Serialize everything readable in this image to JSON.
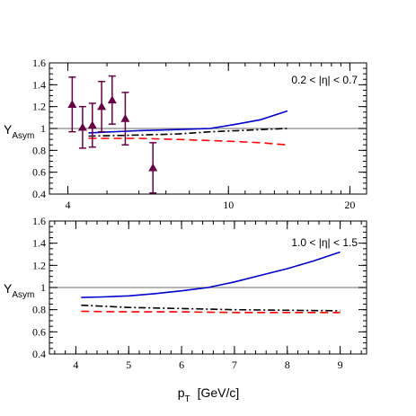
{
  "chart_data": [
    {
      "type": "line",
      "x_scale": "log",
      "xlim": [
        3.6,
        22
      ],
      "ylim": [
        0.4,
        1.6
      ],
      "x_ticks": [
        4,
        10,
        20
      ],
      "x_tick_labels": [
        "4",
        "10",
        "20"
      ],
      "y_ticks": [
        0.4,
        0.6,
        0.8,
        1.0,
        1.2,
        1.4,
        1.6
      ],
      "y_tick_labels": [
        "0.4",
        "0.6",
        "0.8",
        "1",
        "1.2",
        "1.4",
        "1.6"
      ],
      "ylabel": "Y",
      "ylabel_sub": "Asym",
      "annotation": "0.2 < |η| < 0.7",
      "reference_line": 1.0,
      "series": [
        {
          "style": "solid",
          "color": "#0000cc",
          "x": [
            4.5,
            6,
            7.5,
            9,
            10.5,
            12,
            14
          ],
          "y": [
            0.96,
            0.98,
            0.99,
            1.0,
            1.04,
            1.08,
            1.16
          ]
        },
        {
          "style": "dashdot",
          "color": "#000000",
          "x": [
            4.5,
            6,
            7.5,
            9,
            10.5,
            12,
            14
          ],
          "y": [
            0.93,
            0.94,
            0.95,
            0.97,
            0.98,
            0.99,
            1.0
          ]
        },
        {
          "style": "dashed",
          "color": "#ff0000",
          "x": [
            4.5,
            6,
            7.5,
            9,
            10.5,
            12,
            14
          ],
          "y": [
            0.91,
            0.91,
            0.9,
            0.89,
            0.88,
            0.87,
            0.85
          ]
        },
        {
          "style": "markers",
          "marker": "triangle",
          "color": "#660044",
          "x": [
            4.1,
            4.35,
            4.6,
            4.85,
            5.15,
            5.55,
            6.5
          ],
          "y": [
            1.22,
            1.01,
            1.03,
            1.2,
            1.26,
            1.09,
            0.64
          ],
          "yerr": [
            0.25,
            0.19,
            0.2,
            0.23,
            0.22,
            0.24,
            0.23
          ]
        }
      ]
    },
    {
      "type": "line",
      "xlim": [
        3.5,
        9.5
      ],
      "ylim": [
        0.4,
        1.6
      ],
      "x_ticks": [
        4,
        5,
        6,
        7,
        8,
        9
      ],
      "x_tick_labels": [
        "4",
        "5",
        "6",
        "7",
        "8",
        "9"
      ],
      "y_ticks": [
        0.4,
        0.6,
        0.8,
        1.0,
        1.2,
        1.4,
        1.6
      ],
      "y_tick_labels": [
        "0.4",
        "0.6",
        "0.8",
        "1",
        "1.2",
        "1.4",
        "1.6"
      ],
      "ylabel": "Y",
      "ylabel_sub": "Asym",
      "xlabel": "p",
      "xlabel_sub": "T",
      "xlabel_unit": "[GeV/c]",
      "annotation": "1.0 < |η| < 1.5",
      "reference_line": 1.0,
      "series": [
        {
          "style": "solid",
          "color": "#0000cc",
          "x": [
            4.1,
            4.5,
            5,
            5.5,
            6,
            6.5,
            7,
            7.5,
            8,
            8.5,
            9
          ],
          "y": [
            0.91,
            0.915,
            0.925,
            0.945,
            0.97,
            1.0,
            1.05,
            1.11,
            1.17,
            1.24,
            1.32
          ]
        },
        {
          "style": "dashdot",
          "color": "#000000",
          "x": [
            4.1,
            5,
            6,
            7,
            8,
            9
          ],
          "y": [
            0.84,
            0.82,
            0.81,
            0.8,
            0.795,
            0.79
          ]
        },
        {
          "style": "dashed",
          "color": "#ff0000",
          "x": [
            4.1,
            5,
            6,
            7,
            8,
            9
          ],
          "y": [
            0.785,
            0.78,
            0.78,
            0.775,
            0.775,
            0.775
          ]
        }
      ]
    }
  ]
}
